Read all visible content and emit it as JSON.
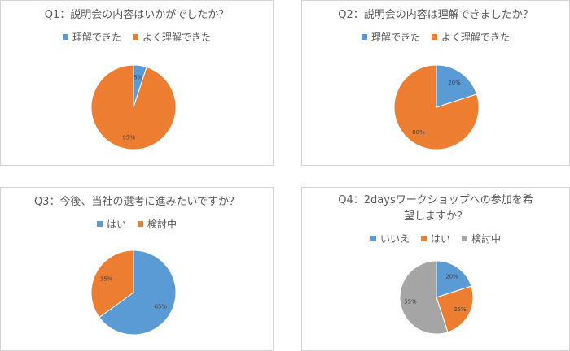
{
  "chart_data": [
    {
      "type": "pie",
      "title": "Q1：説明会の内容はいかがでしたか？",
      "categories": [
        "理解できた",
        "よく理解できた"
      ],
      "values": [
        5,
        95
      ],
      "labels": [
        "5%",
        "95%"
      ],
      "colors": [
        "#5b9bd5",
        "#ed7d31"
      ],
      "legend": "top"
    },
    {
      "type": "pie",
      "title": "Q2：説明会の内容は理解できましたか？",
      "categories": [
        "理解できた",
        "よく理解できた"
      ],
      "values": [
        20,
        80
      ],
      "labels": [
        "20%",
        "80%"
      ],
      "colors": [
        "#5b9bd5",
        "#ed7d31"
      ],
      "legend": "top"
    },
    {
      "type": "pie",
      "title": "Q3：今後、当社の選考に進みたいですか？",
      "categories": [
        "はい",
        "検討中"
      ],
      "values": [
        65,
        35
      ],
      "labels": [
        "65%",
        "35%"
      ],
      "colors": [
        "#5b9bd5",
        "#ed7d31"
      ],
      "legend": "top"
    },
    {
      "type": "pie",
      "title": "Q4：2daysワークショップへの参加を希望しますか？",
      "categories": [
        "いいえ",
        "はい",
        "検討中"
      ],
      "values": [
        20,
        25,
        55
      ],
      "labels": [
        "20%",
        "25%",
        "55%"
      ],
      "colors": [
        "#5b9bd5",
        "#ed7d31",
        "#a5a5a5"
      ],
      "legend": "top"
    }
  ]
}
